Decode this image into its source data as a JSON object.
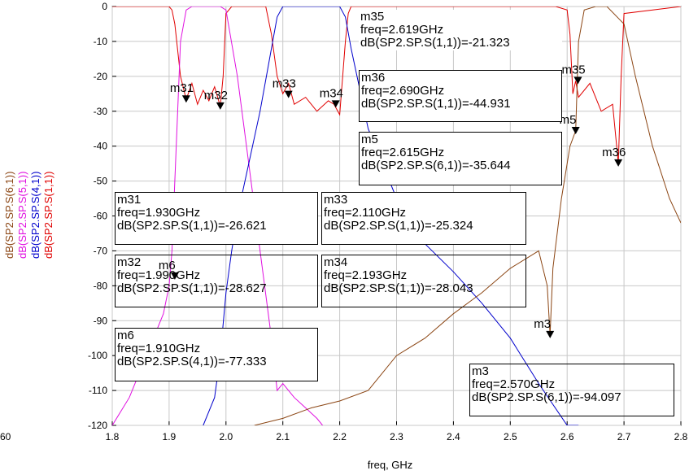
{
  "chart_data": {
    "type": "line",
    "xlabel": "freq, GHz",
    "xlim": [
      1.8,
      2.8
    ],
    "ylim": [
      -120,
      0
    ],
    "xticks": [
      "1.8",
      "1.9",
      "2.0",
      "2.1",
      "2.2",
      "2.3",
      "2.4",
      "2.5",
      "2.6",
      "2.7",
      "2.8"
    ],
    "yticks": [
      "0",
      "-10",
      "-20",
      "-30",
      "-40",
      "-50",
      "-60",
      "-70",
      "-80",
      "-90",
      "-100",
      "-110",
      "-120"
    ],
    "left_edge_tick": "60",
    "grid": true,
    "ylabels": [
      {
        "text": "dB(SP2.SP.S(6,1))",
        "color": "#8B4513"
      },
      {
        "text": "dB(SP2.SP.S(5,1))",
        "color": "#E010E0"
      },
      {
        "text": "dB(SP2.SP.S(4,1))",
        "color": "#0000CC"
      },
      {
        "text": "dB(SP2.SP.S(1,1))",
        "color": "#E00000"
      }
    ],
    "series": [
      {
        "color": "#E00000",
        "x": [
          1.8,
          1.9,
          1.905,
          1.91,
          1.92,
          1.93,
          1.94,
          1.95,
          1.96,
          1.97,
          1.98,
          1.99,
          1.995,
          2.0,
          2.01,
          2.04,
          2.07,
          2.08,
          2.09,
          2.1,
          2.11,
          2.12,
          2.14,
          2.16,
          2.18,
          2.19,
          2.2,
          2.21,
          2.215,
          2.22,
          2.3,
          2.4,
          2.5,
          2.58,
          2.6,
          2.605,
          2.61,
          2.615,
          2.62,
          2.64,
          2.66,
          2.68,
          2.69,
          2.695,
          2.7,
          2.8
        ],
        "y": [
          0,
          0,
          -1,
          -5,
          -20,
          -26.6,
          -22,
          -28,
          -24,
          -27,
          -23,
          -28.6,
          -20,
          -2,
          0,
          0,
          0,
          -8,
          -20,
          -25,
          -22,
          -28,
          -26,
          -30,
          -27,
          -28,
          -31,
          -10,
          -2,
          0,
          0,
          0,
          0,
          0,
          -1,
          -8,
          -25,
          -21.3,
          -26,
          -22,
          -30,
          -28,
          -44.9,
          -20,
          -2,
          0
        ]
      },
      {
        "color": "#E010E0",
        "x": [
          1.8,
          1.83,
          1.86,
          1.89,
          1.9,
          1.905,
          1.91,
          1.915,
          1.92,
          1.93,
          1.94,
          1.95,
          1.96,
          1.97,
          1.98,
          1.99,
          2.0,
          2.02,
          2.04,
          2.06,
          2.08,
          2.09,
          2.1,
          2.12,
          2.14,
          2.16,
          2.17
        ],
        "y": [
          -120,
          -112,
          -100,
          -88,
          -80,
          -70,
          -50,
          -30,
          -10,
          -1,
          0,
          0,
          0,
          0,
          0,
          0,
          -1,
          -20,
          -45,
          -70,
          -95,
          -110,
          -108,
          -112,
          -115,
          -118,
          -120
        ]
      },
      {
        "color": "#0000CC",
        "x": [
          1.96,
          1.98,
          1.99,
          2.0,
          2.01,
          2.02,
          2.04,
          2.06,
          2.08,
          2.09,
          2.1,
          2.12,
          2.15,
          2.18,
          2.2,
          2.21,
          2.22,
          2.25,
          2.3,
          2.35,
          2.4,
          2.45,
          2.5,
          2.55,
          2.6,
          2.62
        ],
        "y": [
          -120,
          -112,
          -100,
          -82,
          -70,
          -60,
          -45,
          -30,
          -12,
          -3,
          0,
          0,
          0,
          0,
          0,
          -3,
          -12,
          -35,
          -55,
          -68,
          -76,
          -85,
          -95,
          -108,
          -120,
          -120
        ]
      },
      {
        "color": "#8B4513",
        "x": [
          2.05,
          2.1,
          2.15,
          2.2,
          2.25,
          2.3,
          2.35,
          2.4,
          2.45,
          2.5,
          2.55,
          2.565,
          2.57,
          2.575,
          2.59,
          2.605,
          2.615,
          2.62,
          2.63,
          2.65,
          2.67,
          2.7,
          2.72,
          2.75,
          2.78,
          2.8
        ],
        "y": [
          -120,
          -118,
          -115,
          -113,
          -110,
          -100,
          -95,
          -88,
          -82,
          -75,
          -70,
          -80,
          -94.1,
          -75,
          -55,
          -40,
          -35.6,
          -10,
          -1,
          0,
          0,
          -5,
          -20,
          -40,
          -55,
          -62
        ]
      }
    ],
    "markers": [
      {
        "name": "m31",
        "x": 1.93,
        "y": -26.621,
        "label": "m31"
      },
      {
        "name": "m32",
        "x": 1.99,
        "y": -28.627,
        "label": "m32"
      },
      {
        "name": "m33",
        "x": 2.11,
        "y": -25.324,
        "label": "m33"
      },
      {
        "name": "m34",
        "x": 2.193,
        "y": -28.043,
        "label": "m34"
      },
      {
        "name": "m35",
        "x": 2.619,
        "y": -21.323,
        "label": "m35"
      },
      {
        "name": "m36",
        "x": 2.69,
        "y": -44.931,
        "label": "m36"
      },
      {
        "name": "m5",
        "x": 2.615,
        "y": -35.644,
        "label": "m5"
      },
      {
        "name": "m6",
        "x": 1.91,
        "y": -77.333,
        "label": "m6"
      },
      {
        "name": "m3",
        "x": 2.57,
        "y": -94.097,
        "label": "m3"
      }
    ]
  },
  "boxes": {
    "m35": {
      "l1": "m35",
      "l2": "freq=2.619GHz",
      "l3": "dB(SP2.SP.S(1,1))=-21.323"
    },
    "m36": {
      "l1": "m36",
      "l2": "freq=2.690GHz",
      "l3": "dB(SP2.SP.S(1,1))=-44.931"
    },
    "m5": {
      "l1": "m5",
      "l2": "freq=2.615GHz",
      "l3": "dB(SP2.SP.S(6,1))=-35.644"
    },
    "m31": {
      "l1": "m31",
      "l2": "freq=1.930GHz",
      "l3": "dB(SP2.SP.S(1,1))=-26.621"
    },
    "m33": {
      "l1": "m33",
      "l2": "freq=2.110GHz",
      "l3": "dB(SP2.SP.S(1,1))=-25.324"
    },
    "m32": {
      "l1": "m32",
      "l2": "freq=1.990GHz",
      "l3": "dB(SP2.SP.S(1,1))=-28.627"
    },
    "m34": {
      "l1": "m34",
      "l2": "freq=2.193GHz",
      "l3": "dB(SP2.SP.S(1,1))=-28.043"
    },
    "m6": {
      "l1": "m6",
      "l2": "freq=1.910GHz",
      "l3": "dB(SP2.SP.S(4,1))=-77.333"
    },
    "m3": {
      "l1": "m3",
      "l2": "freq=2.570GHz",
      "l3": "dB(SP2.SP.S(6,1))=-94.097"
    }
  }
}
